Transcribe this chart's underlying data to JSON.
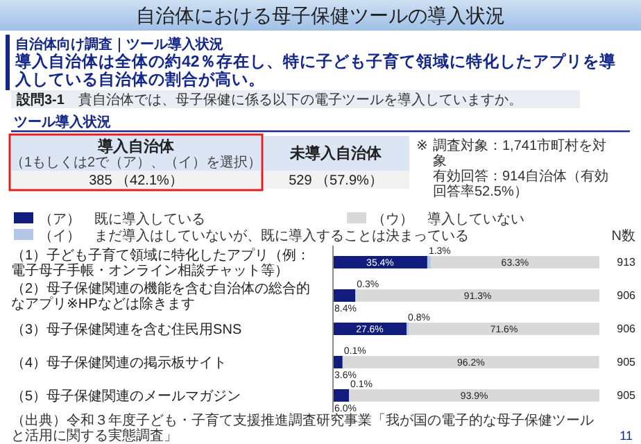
{
  "chart_data": {
    "type": "bar",
    "orientation": "horizontal",
    "stacked": true,
    "title": "自治体における母子保健ツールの導入状況",
    "subtitle": "導入自治体は全体の約42％存在し、特に子ども子育て領域に特化したアプリを導入している自治体の割合が高い。",
    "categories": [
      "（1）子ども子育て領域に特化したアプリ（例：電子母子手帳・オンライン相談チャット等）",
      "（2）母子保健関連の機能を含む自治体の総合的なアプリ※HPなどは除きます",
      "（3）母子保健関連を含む住民用SNS",
      "（4）母子保健関連の掲示板サイト",
      "（5）母子保健関連のメールマガジン"
    ],
    "series": [
      {
        "name": "（ア）　既に導入している",
        "color": "#111d7e",
        "values": [
          35.4,
          8.4,
          27.6,
          3.6,
          6.0
        ],
        "value_labels": [
          "35.4%",
          "8.4%",
          "27.6%",
          "3.6%",
          "6.0%"
        ]
      },
      {
        "name": "（イ）　まだ導入はしていないが、既に導入することは決まっている",
        "color": "#b4c6e7",
        "values": [
          1.3,
          0.3,
          0.8,
          0.1,
          0.1
        ],
        "value_labels": [
          "1.3%",
          "0.3%",
          "0.8%",
          "0.1%",
          "0.1%"
        ]
      },
      {
        "name": "（ウ）　導入していない",
        "color": "#d9d9d9",
        "values": [
          63.3,
          91.3,
          71.6,
          96.2,
          93.9
        ],
        "value_labels": [
          "63.3%",
          "91.3%",
          "71.6%",
          "96.2%",
          "93.9%"
        ]
      }
    ],
    "xlim": [
      0,
      100
    ],
    "legend": "top",
    "annotations": [
      "自治体向け調査｜ツール導入状況",
      "設問3-1",
      "貴自治体では、母子保健に係る以下の電子ツールを導入していますか。",
      "ツール導入状況",
      "導入自治体",
      "（1もしくは2で（ア）、（イ）を選択）",
      "385 （42.1%）",
      "未導入自治体",
      "529 （57.9%）",
      "※",
      "調査対象：1,741市町村を対象",
      "有効回答：914自治体（有効回答率52.5%）",
      "N数",
      "913",
      "906",
      "906",
      "905",
      "905",
      "（出典）令和３年度子ども・子育て支援推進調査研究事業「我が国の電子的な母子保健ツールと活用に関する実態調査」",
      "11"
    ]
  }
}
